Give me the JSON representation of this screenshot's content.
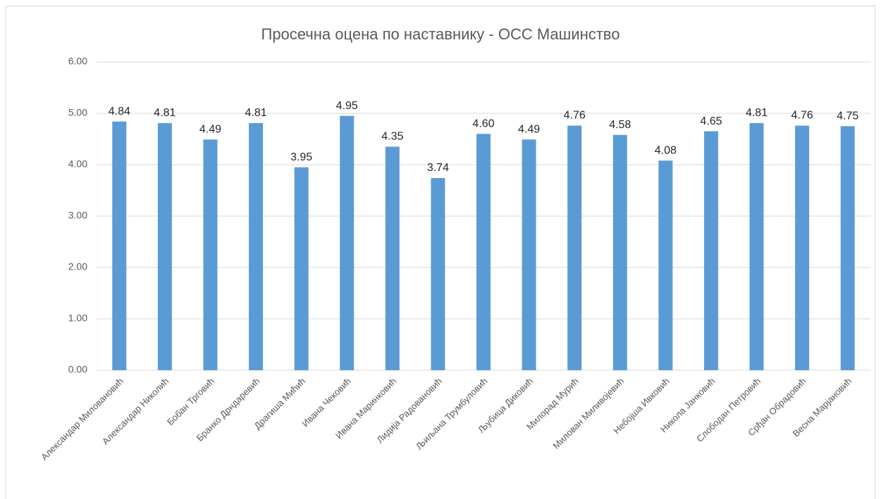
{
  "chart_data": {
    "type": "bar",
    "title": "Просечна оцена по наставнику - ОСС Машинство",
    "categories": [
      "Александар Миловановић",
      "Александар Николић",
      "Бобан Трговић",
      "Бранко Дрндаревић",
      "Драгиша Мићић",
      "Ивана Чековић",
      "Ивана Маринковић",
      "Лидија Радовановић",
      "Љиљана Трумбуловић",
      "Љубица Диковић",
      "Милорад Мурић",
      "Милован Миливојевић",
      "Небојша Ивковић",
      "Никола Јанковић",
      "Слободан Петровић",
      "Срђан Обрадовић",
      "Весна Марјановић"
    ],
    "values": [
      4.84,
      4.81,
      4.49,
      4.81,
      3.95,
      4.95,
      4.35,
      3.74,
      4.6,
      4.49,
      4.76,
      4.58,
      4.08,
      4.65,
      4.81,
      4.76,
      4.75
    ],
    "value_labels": [
      "4.84",
      "4.81",
      "4.49",
      "4.81",
      "3.95",
      "4.95",
      "4.35",
      "3.74",
      "4.60",
      "4.49",
      "4.76",
      "4.58",
      "4.08",
      "4.65",
      "4.81",
      "4.76",
      "4.75"
    ],
    "color": "#5b9bd5",
    "ylim": [
      0,
      6
    ],
    "yticks": [
      {
        "value": 0,
        "label": "0.00"
      },
      {
        "value": 1,
        "label": "1.00"
      },
      {
        "value": 2,
        "label": "2.00"
      },
      {
        "value": 3,
        "label": "3.00"
      },
      {
        "value": 4,
        "label": "4.00"
      },
      {
        "value": 5,
        "label": "5.00"
      },
      {
        "value": 6,
        "label": "6.00"
      }
    ],
    "grid": true
  }
}
